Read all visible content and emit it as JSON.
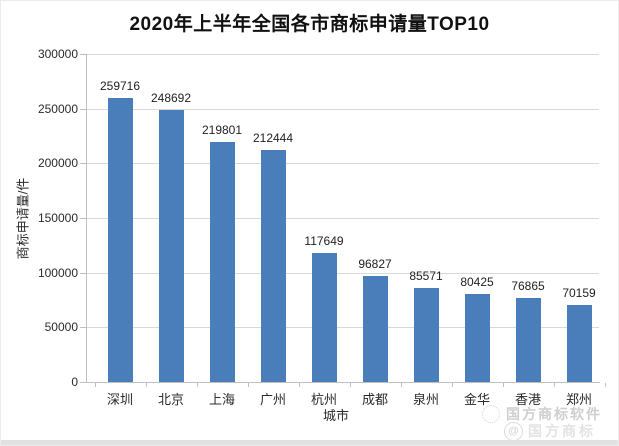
{
  "chart_data": {
    "type": "bar",
    "title": "2020年上半年全国各市商标申请量TOP10",
    "categories": [
      "深圳",
      "北京",
      "上海",
      "广州",
      "杭州",
      "成都",
      "泉州",
      "金华",
      "香港",
      "郑州"
    ],
    "values": [
      259716,
      248692,
      219801,
      212444,
      117649,
      96827,
      85571,
      80425,
      76865,
      70159
    ],
    "xlabel": "城市",
    "ylabel": "商标申请量/件",
    "ylim": [
      0,
      300000
    ],
    "yticks": [
      0,
      50000,
      100000,
      150000,
      200000,
      250000,
      300000
    ],
    "grid": true,
    "legend": false,
    "data_labels": true
  },
  "colors": {
    "bar": "#4a7ebb",
    "gridline": "#d9d9d9",
    "axis": "#bfbfbf",
    "title_text": "#111111",
    "label_text": "#2b2b2b",
    "watermark_text": "#cfcfcf"
  },
  "watermark": {
    "line1": "国方商标软件",
    "line2": "国方商标",
    "logo_glyph": "@"
  }
}
